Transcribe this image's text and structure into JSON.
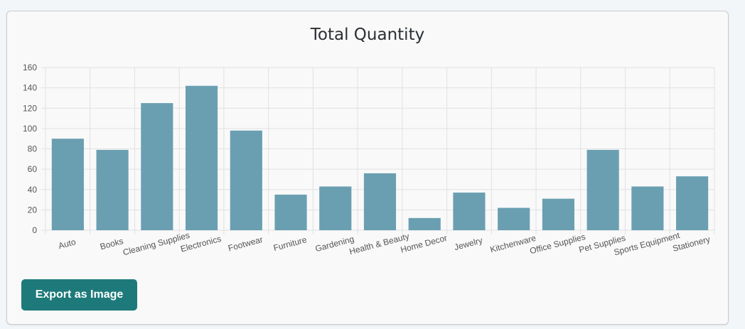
{
  "export_button_label": "Export as Image",
  "colors": {
    "bar": "#6a9fb2",
    "button": "#1e7a7a",
    "grid": "#e1e1e1"
  },
  "chart_data": {
    "type": "bar",
    "title": "Total Quantity",
    "categories": [
      "Auto",
      "Books",
      "Cleaning Supplies",
      "Electronics",
      "Footwear",
      "Furniture",
      "Gardening",
      "Health & Beauty",
      "Home Decor",
      "Jewelry",
      "Kitchenware",
      "Office Supplies",
      "Pet Supplies",
      "Sports Equipment",
      "Stationery"
    ],
    "values": [
      90,
      79,
      125,
      142,
      98,
      35,
      43,
      56,
      12,
      37,
      22,
      31,
      79,
      43,
      53
    ],
    "ylim": [
      0,
      160
    ],
    "yticks": [
      "0",
      "20",
      "40",
      "60",
      "80",
      "100",
      "120",
      "140",
      "160"
    ],
    "grid": true
  }
}
